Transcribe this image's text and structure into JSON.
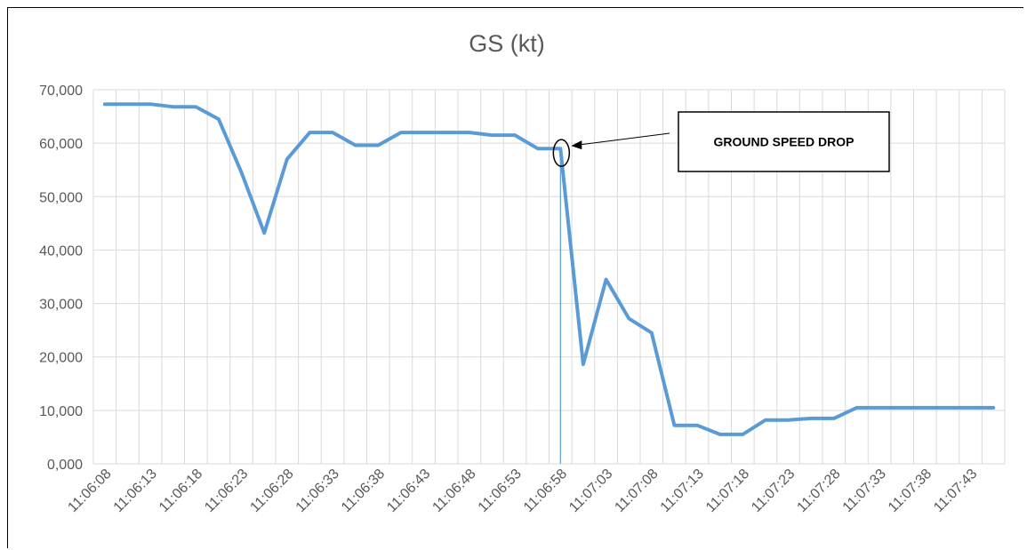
{
  "chart_data": {
    "type": "line",
    "title": "GS (kt)",
    "xlabel": "",
    "ylabel": "",
    "ylim": [
      0,
      70
    ],
    "yticks": [
      0,
      10,
      20,
      30,
      40,
      50,
      60,
      70
    ],
    "ytick_labels": [
      "0,000",
      "10,000",
      "20,000",
      "30,000",
      "40,000",
      "50,000",
      "60,000",
      "70,000"
    ],
    "x_tick_labels": [
      "11:06:08",
      "11:06:13",
      "11:06:18",
      "11:06:23",
      "11:06:28",
      "11:06:33",
      "11:06:38",
      "11:06:43",
      "11:06:48",
      "11:06:53",
      "11:06:58",
      "11:07:03",
      "11:07:08",
      "11:07:13",
      "11:07:18",
      "11:07:23",
      "11:07:28",
      "11:07:33",
      "11:07:38",
      "11:07:43"
    ],
    "x_tick_every": 2,
    "grid": true,
    "series_color": "#5b9bd5",
    "series": [
      {
        "x": [
          "11:06:08",
          "11:06:10.5",
          "11:06:13",
          "11:06:15.5",
          "11:06:18",
          "11:06:20.5",
          "11:06:23",
          "11:06:25.5",
          "11:06:28",
          "11:06:30.5",
          "11:06:33",
          "11:06:35.5",
          "11:06:38",
          "11:06:40.5",
          "11:06:43",
          "11:06:45.5",
          "11:06:48",
          "11:06:50.5",
          "11:06:53",
          "11:06:55.5",
          "11:06:58",
          "11:07:00.5",
          "11:07:03",
          "11:07:05.5",
          "11:07:08",
          "11:07:10.5",
          "11:07:13",
          "11:07:15.5",
          "11:07:18",
          "11:07:20.5",
          "11:07:23",
          "11:07:25.5",
          "11:07:28",
          "11:07:30.5",
          "11:07:33",
          "11:07:35.5",
          "11:07:38",
          "11:07:40.5",
          "11:07:43",
          "11:07:45.5"
        ],
        "values": [
          67.3,
          67.3,
          67.3,
          66.8,
          66.8,
          64.5,
          54.5,
          43.2,
          57.0,
          62.0,
          62.0,
          59.6,
          59.6,
          62.0,
          62.0,
          62.0,
          62.0,
          61.5,
          61.5,
          59.0,
          59.0,
          18.6,
          34.5,
          27.2,
          24.5,
          7.2,
          7.2,
          5.5,
          5.5,
          8.2,
          8.2,
          8.5,
          8.5,
          10.5,
          10.5,
          10.5,
          10.5,
          10.5,
          10.5,
          10.5
        ]
      }
    ],
    "annotation": {
      "text": "GROUND SPEED DROP",
      "target_x": "11:06:58",
      "target_y": 59.0
    },
    "marker_line_x": "11:06:58"
  }
}
